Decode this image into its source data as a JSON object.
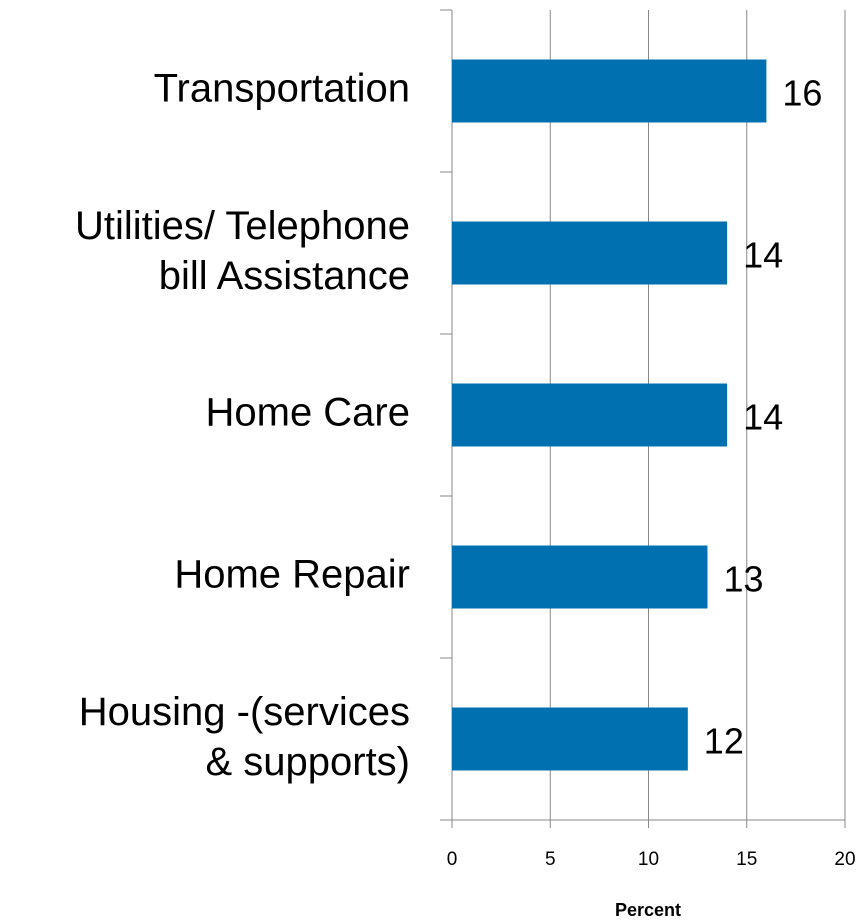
{
  "chart_data": {
    "type": "bar",
    "orientation": "horizontal",
    "categories": [
      "Transportation",
      "Utilities/ Telephone\nbill Assistance",
      "Home Care",
      "Home Repair",
      "Housing -(services\n& supports)"
    ],
    "values": [
      16,
      14,
      14,
      13,
      12
    ],
    "color": "#0070b0",
    "xlabel": "Percent",
    "xlim": [
      0,
      20
    ],
    "xticks": [
      0,
      5,
      10,
      15,
      20
    ],
    "grid": true
  }
}
